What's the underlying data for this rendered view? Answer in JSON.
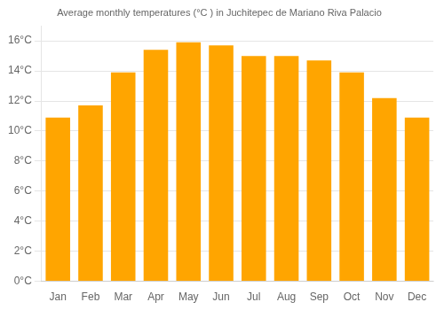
{
  "chart_data": {
    "type": "bar",
    "title": "Average monthly temperatures (°C ) in Juchitepec de Mariano Riva Palacio",
    "categories": [
      "Jan",
      "Feb",
      "Mar",
      "Apr",
      "May",
      "Jun",
      "Jul",
      "Aug",
      "Sep",
      "Oct",
      "Nov",
      "Dec"
    ],
    "values": [
      10.9,
      11.7,
      13.9,
      15.4,
      15.9,
      15.7,
      15.0,
      15.0,
      14.7,
      13.9,
      12.2,
      10.9
    ],
    "color": "#FFA500",
    "ylim": [
      0,
      17
    ],
    "yticks": [
      {
        "value": 0,
        "label": "0°C"
      },
      {
        "value": 2,
        "label": "2°C"
      },
      {
        "value": 4,
        "label": "4°C"
      },
      {
        "value": 6,
        "label": "6°C"
      },
      {
        "value": 8,
        "label": "8°C"
      },
      {
        "value": 10,
        "label": "10°C"
      },
      {
        "value": 12,
        "label": "12°C"
      },
      {
        "value": 14,
        "label": "14°C"
      },
      {
        "value": 16,
        "label": "16°C"
      }
    ],
    "grid": true
  }
}
